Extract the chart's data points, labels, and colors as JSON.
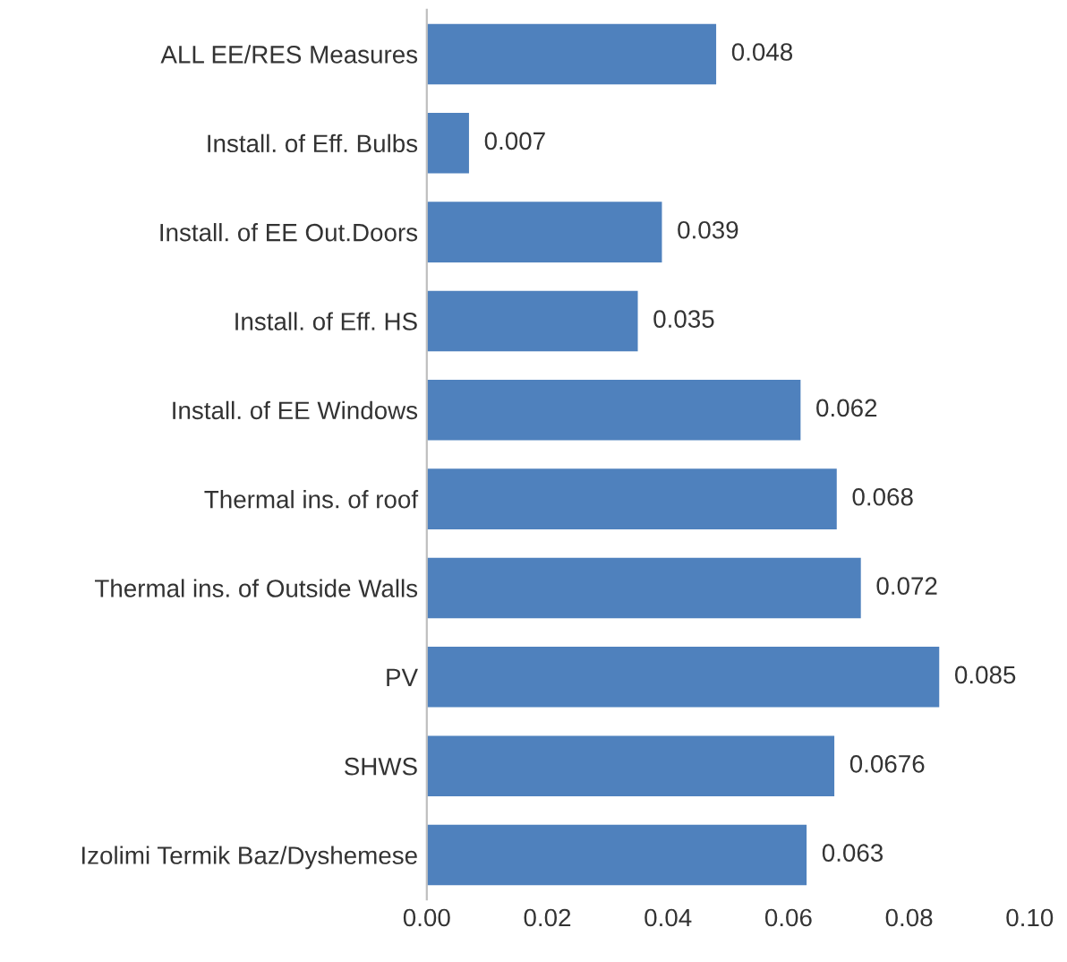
{
  "chart_data": {
    "type": "bar",
    "orientation": "horizontal",
    "categories": [
      "ALL EE/RES Measures",
      "Install. of Eff. Bulbs",
      "Install. of EE Out.Doors",
      "Install. of Eff. HS",
      "Install. of EE Windows",
      "Thermal ins. of roof",
      "Thermal ins. of Outside Walls",
      "PV",
      "SHWS",
      "Izolimi Termik Baz/Dyshemese"
    ],
    "values": [
      0.048,
      0.007,
      0.039,
      0.035,
      0.062,
      0.068,
      0.072,
      0.085,
      0.0676,
      0.063
    ],
    "value_labels": [
      "0.048",
      "0.007",
      "0.039",
      "0.035",
      "0.062",
      "0.068",
      "0.072",
      "0.085",
      "0.0676",
      "0.063"
    ],
    "color": "#4f81bd",
    "xlim": [
      0,
      0.1
    ],
    "xticks": [
      {
        "value": 0,
        "label": "0.00"
      },
      {
        "value": 0.02,
        "label": "0.02"
      },
      {
        "value": 0.04,
        "label": "0.04"
      },
      {
        "value": 0.06,
        "label": "0.06"
      },
      {
        "value": 0.08,
        "label": "0.08"
      },
      {
        "value": 0.1,
        "label": "0.10"
      }
    ],
    "grid": false,
    "legend": false
  }
}
